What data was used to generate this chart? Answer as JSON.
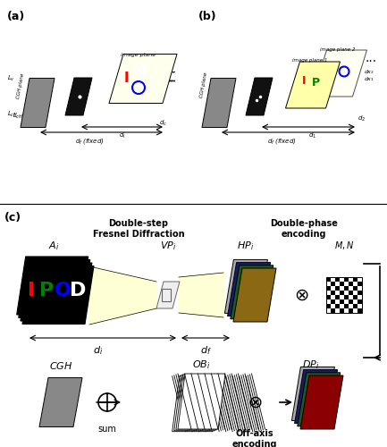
{
  "fig_width": 4.33,
  "fig_height": 5.0,
  "dpi": 100,
  "bg_color": "#ffffff",
  "panel_a_label": "(a)",
  "panel_b_label": "(b)",
  "panel_c_label": "(c)",
  "top_label1": "Double-step\nFresnel Diffraction",
  "top_label2": "Double-phase\nencoding",
  "Ai_label": "$A_i$",
  "VPi_label": "$VP_i$",
  "HPi_label": "$HP_i$",
  "MN_label": "$M, N$",
  "CGH_label": "$CGH$",
  "OBi_label": "$OB_i$",
  "DPi_label": "$DP_i$",
  "di_label": "$d_i$",
  "df_label": "$d_f$",
  "sum_label": "sum",
  "offaxis_label": "Off-axis\nencoding",
  "gray_color": "#808080",
  "dark_gray": "#555555",
  "light_gray": "#aaaaaa",
  "black": "#000000",
  "white": "#ffffff",
  "yellow_light": "#ffffcc",
  "brown": "#8B6914",
  "dark_green": "#1a5c1a",
  "dark_blue": "#1a1a6e",
  "dark_red": "#8B0000",
  "red": "#ff0000",
  "green": "#00cc00",
  "blue": "#0000ff"
}
